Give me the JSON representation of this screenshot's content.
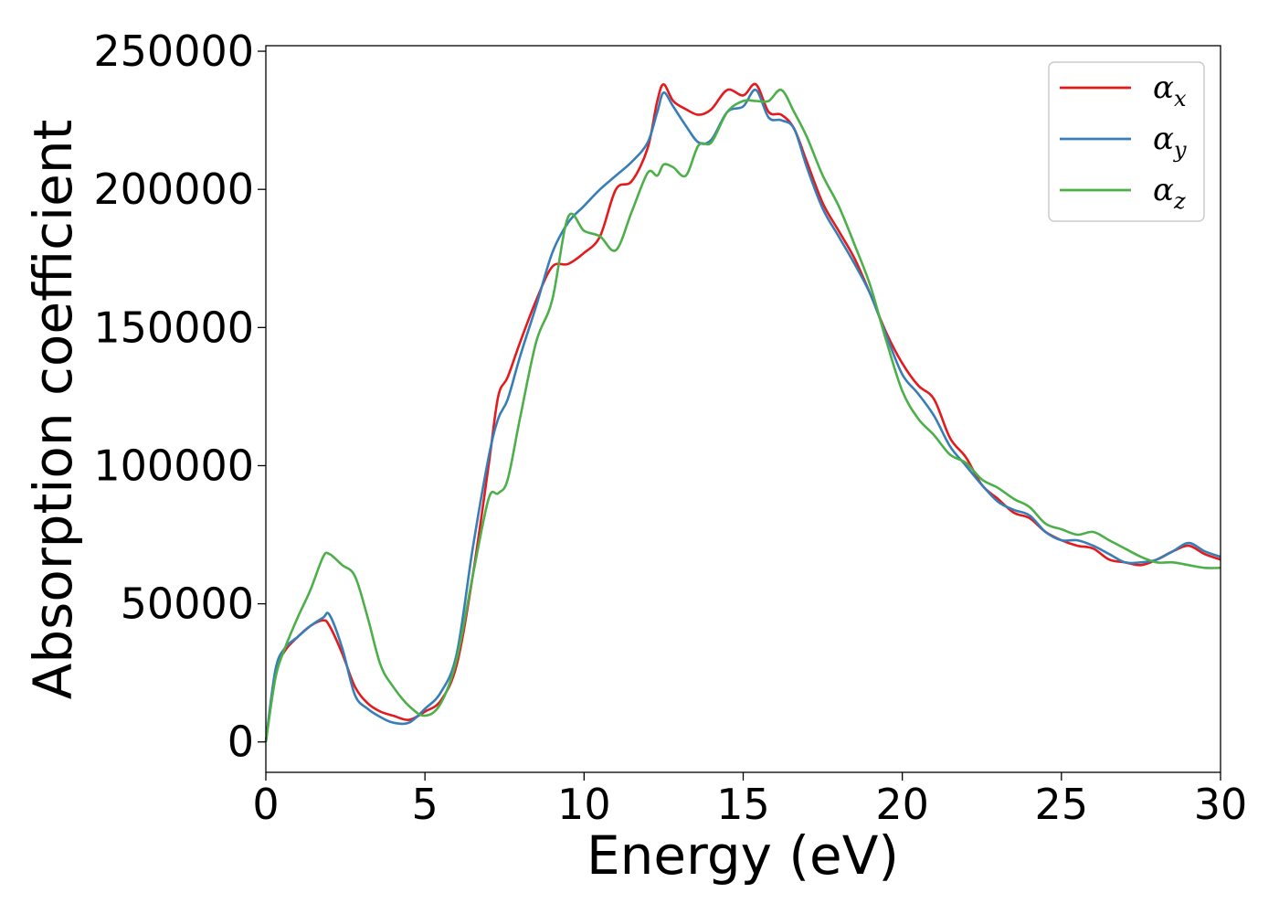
{
  "chart_data": {
    "type": "line",
    "xlabel": "Energy (eV)",
    "ylabel": "Absorption coefficient",
    "xlim": [
      0,
      30
    ],
    "ylim": [
      -11000,
      252000
    ],
    "xticks": [
      0,
      5,
      10,
      15,
      20,
      25,
      30
    ],
    "yticks": [
      0,
      50000,
      100000,
      150000,
      200000,
      250000
    ],
    "grid": false,
    "legend_position": "top-right",
    "series": [
      {
        "name": "α",
        "subscript": "x",
        "color": "#e41a1c",
        "x": [
          0,
          0.3,
          0.6,
          1.0,
          1.4,
          1.8,
          2.0,
          2.4,
          2.8,
          3.2,
          3.6,
          4.0,
          4.5,
          5.0,
          5.5,
          6.0,
          6.5,
          7.0,
          7.3,
          7.6,
          8.0,
          8.5,
          9.0,
          9.5,
          10.0,
          10.5,
          11.0,
          11.5,
          12.0,
          12.3,
          12.5,
          12.8,
          13.2,
          13.6,
          14.0,
          14.5,
          15.0,
          15.4,
          15.8,
          16.2,
          16.6,
          17.0,
          17.5,
          18.0,
          18.5,
          19.0,
          19.5,
          20.0,
          20.5,
          21.0,
          21.5,
          22.0,
          22.5,
          23.0,
          23.5,
          24.0,
          24.5,
          25.0,
          25.5,
          26.0,
          26.5,
          27.0,
          27.5,
          28.0,
          28.5,
          29.0,
          29.5,
          30.0
        ],
        "y": [
          0,
          25000,
          33000,
          38000,
          42000,
          44000,
          42000,
          32000,
          20000,
          14000,
          11000,
          9500,
          8000,
          11000,
          15000,
          28000,
          60000,
          100000,
          125000,
          132000,
          145000,
          160000,
          172000,
          173000,
          177000,
          183000,
          200000,
          203000,
          215000,
          232000,
          238000,
          232000,
          229000,
          227000,
          229000,
          236000,
          234000,
          238000,
          228000,
          227000,
          222000,
          210000,
          195000,
          185000,
          175000,
          162000,
          148000,
          137000,
          129000,
          124000,
          110000,
          103000,
          93000,
          88000,
          83000,
          81000,
          76000,
          73000,
          71000,
          70000,
          66000,
          65000,
          64000,
          66000,
          69000,
          71000,
          68000,
          66000
        ]
      },
      {
        "name": "α",
        "subscript": "y",
        "color": "#377eb8",
        "x": [
          0,
          0.3,
          0.6,
          1.0,
          1.4,
          1.8,
          2.0,
          2.4,
          2.8,
          3.2,
          3.6,
          4.0,
          4.5,
          5.0,
          5.5,
          6.0,
          6.5,
          7.0,
          7.3,
          7.6,
          8.0,
          8.5,
          9.0,
          9.5,
          10.0,
          10.5,
          11.0,
          11.5,
          12.0,
          12.3,
          12.5,
          12.8,
          13.2,
          13.6,
          14.0,
          14.5,
          15.0,
          15.4,
          15.8,
          16.2,
          16.6,
          17.0,
          17.5,
          18.0,
          18.5,
          19.0,
          19.5,
          20.0,
          20.5,
          21.0,
          21.5,
          22.0,
          22.5,
          23.0,
          23.5,
          24.0,
          24.5,
          25.0,
          25.5,
          26.0,
          26.5,
          27.0,
          27.5,
          28.0,
          28.5,
          29.0,
          29.5,
          30.0
        ],
        "y": [
          0,
          26000,
          34000,
          38000,
          42000,
          45000,
          46000,
          34000,
          17000,
          12000,
          9000,
          7000,
          7000,
          12000,
          18000,
          32000,
          70000,
          103000,
          117000,
          124000,
          140000,
          158000,
          177000,
          188000,
          194000,
          200000,
          205000,
          210000,
          217000,
          228000,
          235000,
          230000,
          223000,
          217000,
          218000,
          228000,
          230000,
          236000,
          226000,
          225000,
          222000,
          208000,
          193000,
          183000,
          173000,
          162000,
          147000,
          133000,
          126000,
          118000,
          107000,
          100000,
          93000,
          87000,
          84000,
          82000,
          76000,
          73000,
          73000,
          71000,
          68000,
          65000,
          65000,
          66000,
          69000,
          72000,
          69000,
          67000
        ]
      },
      {
        "name": "α",
        "subscript": "z",
        "color": "#4daf4a",
        "x": [
          0,
          0.3,
          0.6,
          1.0,
          1.4,
          1.8,
          2.0,
          2.4,
          2.8,
          3.2,
          3.6,
          4.0,
          4.5,
          5.0,
          5.5,
          6.0,
          6.5,
          7.0,
          7.3,
          7.6,
          8.0,
          8.5,
          9.0,
          9.5,
          10.0,
          10.5,
          11.0,
          11.5,
          12.0,
          12.3,
          12.5,
          12.8,
          13.2,
          13.6,
          14.0,
          14.5,
          15.0,
          15.4,
          15.8,
          16.2,
          16.6,
          17.0,
          17.5,
          18.0,
          18.5,
          19.0,
          19.5,
          20.0,
          20.5,
          21.0,
          21.5,
          22.0,
          22.5,
          23.0,
          23.5,
          24.0,
          24.5,
          25.0,
          25.5,
          26.0,
          26.5,
          27.0,
          27.5,
          28.0,
          28.5,
          29.0,
          29.5,
          30.0
        ],
        "y": [
          0,
          23000,
          34000,
          45000,
          55000,
          67000,
          68000,
          64000,
          60000,
          45000,
          28000,
          20000,
          13000,
          9500,
          14000,
          30000,
          60000,
          88000,
          90000,
          95000,
          118000,
          145000,
          160000,
          190000,
          185000,
          183000,
          178000,
          192000,
          206000,
          205000,
          209000,
          208000,
          205000,
          216000,
          217000,
          228000,
          232000,
          232000,
          232000,
          236000,
          228000,
          219000,
          205000,
          194000,
          180000,
          165000,
          145000,
          127000,
          117000,
          111000,
          104000,
          101000,
          95000,
          92000,
          88000,
          85000,
          79000,
          77000,
          75000,
          76000,
          73000,
          70000,
          67000,
          65000,
          65000,
          64000,
          63000,
          63000
        ]
      }
    ]
  }
}
